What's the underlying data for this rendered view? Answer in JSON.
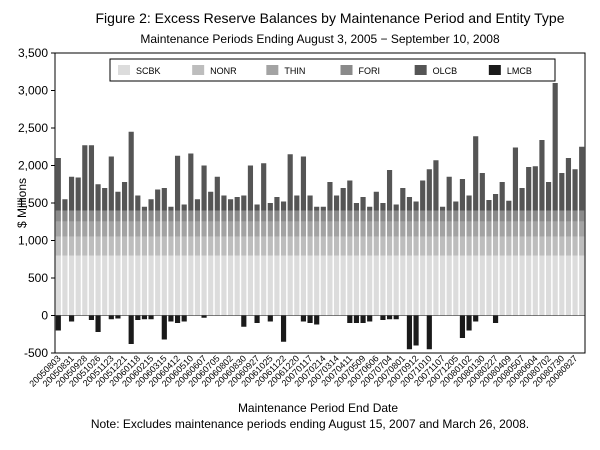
{
  "chart_data": {
    "type": "stacked_bar",
    "title": "Figure 2: Excess Reserve Balances by Maintenance Period and Entity Type",
    "subtitle": "Maintenance Periods Ending August 3, 2005 − September 10, 2008",
    "y_label": "$ Millions",
    "x_label": "Maintenance Period End Date",
    "note": "Note: Excludes maintenance periods ending August 15, 2007 and March 26, 2008.",
    "categories": [
      "20050803",
      null,
      "20050831",
      null,
      "20050928",
      null,
      "20051026",
      null,
      "20051123",
      null,
      "20051221",
      null,
      "20060118",
      null,
      "20060215",
      null,
      "20060315",
      null,
      "20060412",
      null,
      "20060510",
      null,
      "20060607",
      null,
      "20060705",
      null,
      "20060802",
      null,
      "20060830",
      null,
      "20060927",
      null,
      "20061025",
      null,
      "20061122",
      null,
      "20061220",
      null,
      "20070117",
      null,
      "20070214",
      null,
      "20070314",
      null,
      "20070411",
      null,
      "20070509",
      null,
      "20070606",
      null,
      "20070704",
      null,
      "20070801",
      null,
      "20070912",
      null,
      "20071010",
      null,
      "20071107",
      null,
      "20071205",
      null,
      "20080102",
      null,
      "20080130",
      null,
      "20080227",
      null,
      "20080409",
      null,
      "20080507",
      null,
      "20080604",
      null,
      "20080702",
      null,
      "20080730",
      null,
      "20080827",
      null
    ],
    "series": [
      {
        "name": "SCBK",
        "color": "#dcdcdc",
        "values": [
          800,
          800,
          800,
          800,
          800,
          800,
          800,
          800,
          800,
          800,
          800,
          800,
          800,
          800,
          800,
          800,
          800,
          800,
          800,
          800,
          800,
          800,
          800,
          800,
          800,
          800,
          800,
          800,
          800,
          800,
          800,
          800,
          800,
          800,
          800,
          800,
          800,
          800,
          800,
          800,
          800,
          800,
          800,
          800,
          800,
          800,
          800,
          800,
          800,
          800,
          800,
          800,
          800,
          800,
          800,
          800,
          800,
          800,
          800,
          800,
          800,
          800,
          800,
          800,
          800,
          800,
          800,
          800,
          800,
          800,
          800,
          800,
          800,
          800,
          800,
          800,
          800,
          800,
          800,
          800
        ]
      },
      {
        "name": "NONR",
        "color": "#bdbdbd",
        "values": [
          250,
          250,
          250,
          250,
          250,
          250,
          250,
          250,
          250,
          250,
          250,
          250,
          250,
          250,
          250,
          250,
          250,
          250,
          250,
          250,
          250,
          250,
          250,
          250,
          250,
          250,
          250,
          250,
          250,
          250,
          250,
          250,
          250,
          250,
          250,
          250,
          250,
          250,
          250,
          250,
          250,
          250,
          250,
          250,
          250,
          250,
          250,
          250,
          250,
          250,
          250,
          250,
          250,
          250,
          250,
          250,
          250,
          250,
          250,
          250,
          250,
          250,
          250,
          250,
          250,
          250,
          250,
          250,
          250,
          250,
          250,
          250,
          250,
          250,
          250,
          250,
          250,
          250,
          250,
          250
        ]
      },
      {
        "name": "THIN",
        "color": "#a3a3a3",
        "values": [
          200,
          200,
          200,
          200,
          200,
          200,
          200,
          200,
          200,
          200,
          200,
          200,
          200,
          200,
          200,
          200,
          200,
          200,
          200,
          200,
          200,
          200,
          200,
          200,
          200,
          200,
          200,
          200,
          200,
          200,
          200,
          200,
          200,
          200,
          200,
          200,
          200,
          200,
          200,
          200,
          200,
          200,
          200,
          200,
          200,
          200,
          200,
          200,
          200,
          200,
          200,
          200,
          200,
          200,
          200,
          200,
          200,
          200,
          200,
          200,
          200,
          200,
          200,
          200,
          200,
          200,
          200,
          200,
          200,
          200,
          200,
          200,
          200,
          200,
          200,
          200,
          200,
          200,
          200,
          200
        ]
      },
      {
        "name": "FORI",
        "color": "#8a8a8a",
        "values": [
          150,
          150,
          150,
          150,
          150,
          150,
          150,
          150,
          150,
          150,
          150,
          150,
          150,
          150,
          150,
          150,
          150,
          150,
          150,
          150,
          150,
          150,
          150,
          150,
          150,
          150,
          150,
          150,
          150,
          150,
          150,
          150,
          150,
          150,
          150,
          150,
          150,
          150,
          150,
          150,
          150,
          150,
          150,
          150,
          150,
          150,
          150,
          150,
          150,
          150,
          150,
          150,
          150,
          150,
          150,
          150,
          150,
          150,
          150,
          150,
          150,
          150,
          150,
          150,
          150,
          150,
          150,
          150,
          150,
          150,
          150,
          150,
          150,
          150,
          150,
          150,
          150,
          150,
          150,
          150
        ]
      },
      {
        "name": "OLCB",
        "color": "#555555",
        "values": [
          700,
          150,
          450,
          440,
          870,
          870,
          350,
          300,
          720,
          250,
          380,
          1050,
          200,
          50,
          150,
          280,
          300,
          50,
          730,
          80,
          760,
          150,
          600,
          250,
          450,
          200,
          150,
          180,
          200,
          600,
          80,
          630,
          100,
          180,
          120,
          750,
          200,
          720,
          200,
          50,
          50,
          380,
          200,
          300,
          400,
          100,
          180,
          50,
          250,
          100,
          540,
          80,
          300,
          180,
          120,
          400,
          550,
          670,
          50,
          450,
          120,
          420,
          200,
          990,
          500,
          140,
          220,
          380,
          130,
          840,
          300,
          580,
          590,
          940,
          380,
          1700,
          500,
          700,
          550,
          850
        ]
      },
      {
        "name": "LMCB",
        "color": "#1a1a1a",
        "values": [
          -200,
          0,
          -80,
          0,
          0,
          -60,
          -220,
          0,
          -50,
          -40,
          0,
          -380,
          -60,
          -50,
          -50,
          0,
          -320,
          -80,
          -100,
          -80,
          0,
          0,
          -30,
          0,
          0,
          0,
          0,
          0,
          -150,
          0,
          -100,
          0,
          -80,
          0,
          -350,
          0,
          0,
          -80,
          -100,
          -120,
          0,
          0,
          0,
          0,
          -100,
          -100,
          -100,
          -80,
          0,
          -60,
          -50,
          -50,
          0,
          -450,
          -400,
          0,
          -450,
          0,
          0,
          0,
          0,
          -300,
          -200,
          -80,
          0,
          0,
          -100,
          0,
          0,
          0,
          0,
          0,
          0,
          0,
          0,
          0,
          0,
          0,
          0,
          0
        ]
      }
    ],
    "ylim": [
      -500,
      3500
    ],
    "yticks": [
      -500,
      0,
      500,
      {
        "value": 1000,
        "label": "1,000"
      },
      {
        "value": 1500,
        "label": "1,500"
      },
      {
        "value": 2000,
        "label": "2,000"
      },
      {
        "value": 2500,
        "label": "2,500"
      },
      {
        "value": 3000,
        "label": "3,000"
      },
      {
        "value": 3500,
        "label": "3,500"
      }
    ],
    "legend": "top"
  }
}
